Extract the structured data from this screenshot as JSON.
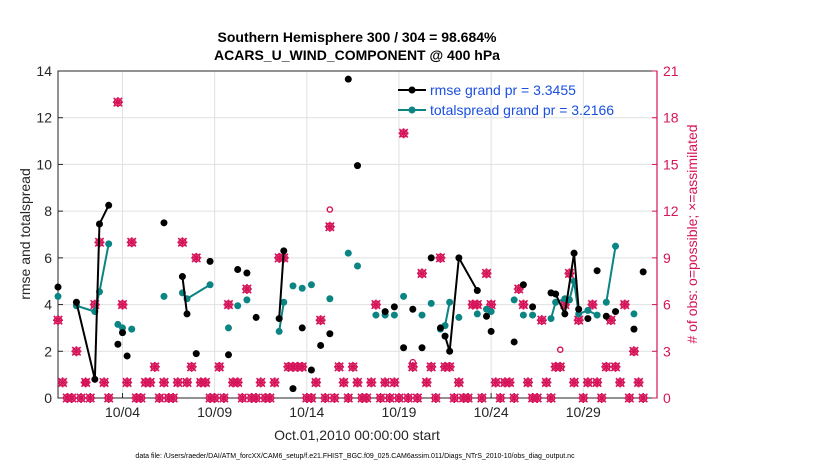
{
  "chart_data": {
    "type": "line",
    "title_line1": "Southern Hemisphere 300 / 304 = 98.684%",
    "title_line2": "ACARS_U_WIND_COMPONENT @ 400 hPa",
    "xlabel": "Oct.01,2010 00:00:00 start",
    "ylabel_left": "rmse and totalspread",
    "ylabel_right": "# of obs: o=possible; ×=assimilated",
    "footer": "data file: /Users/raeder/DAI/ATM_forcXX/CAM6_setup/f.e21.FHIST_BGC.f09_025.CAM6assim.011/Diags_NTrS_2010-10/obs_diag_output.nc",
    "xlim": [
      0.5,
      33
    ],
    "ylim_left": [
      0,
      14
    ],
    "ylim_right": [
      0,
      21
    ],
    "x_ticks": [
      {
        "x": 4,
        "label": "10/04"
      },
      {
        "x": 9,
        "label": "10/09"
      },
      {
        "x": 14,
        "label": "10/14"
      },
      {
        "x": 19,
        "label": "10/19"
      },
      {
        "x": 24,
        "label": "10/24"
      },
      {
        "x": 29,
        "label": "10/29"
      }
    ],
    "y_ticks_left": [
      "0",
      "2",
      "4",
      "6",
      "8",
      "10",
      "12",
      "14"
    ],
    "y_ticks_right": [
      "0",
      "3",
      "6",
      "9",
      "12",
      "15",
      "18",
      "21"
    ],
    "colors": {
      "rmse": "#000000",
      "spread": "#0b8484",
      "obs": "#d6145a",
      "legend_text": "#1a4fe0",
      "right_axis": "#d6145a"
    },
    "legend": {
      "rmse": "rmse grand pr = 3.3455",
      "spread": "totalspread grand pr = 3.2166",
      "position": "top-right"
    },
    "rmse": [
      [
        0.5,
        4.75
      ],
      [
        1.5,
        4.1
      ],
      [
        2.5,
        0.8
      ],
      [
        2.75,
        7.45
      ],
      [
        3.25,
        8.25
      ],
      [
        3.75,
        2.3
      ],
      [
        4.0,
        2.8
      ],
      [
        4.25,
        1.8
      ],
      [
        6.25,
        7.5
      ],
      [
        7.25,
        5.2
      ],
      [
        7.5,
        3.6
      ],
      [
        8.0,
        1.9
      ],
      [
        8.75,
        5.85
      ],
      [
        9.75,
        1.85
      ],
      [
        10.25,
        5.5
      ],
      [
        10.75,
        5.35
      ],
      [
        11.25,
        3.45
      ],
      [
        12.5,
        3.4
      ],
      [
        12.75,
        6.3
      ],
      [
        13.25,
        0.4
      ],
      [
        13.75,
        3.0
      ],
      [
        14.25,
        1.2
      ],
      [
        14.75,
        2.25
      ],
      [
        15.25,
        2.75
      ],
      [
        16.25,
        13.65
      ],
      [
        16.75,
        9.95
      ],
      [
        18.25,
        3.7
      ],
      [
        18.75,
        3.9
      ],
      [
        19.25,
        2.15
      ],
      [
        19.75,
        3.8
      ],
      [
        20.25,
        2.15
      ],
      [
        20.75,
        6.0
      ],
      [
        21.25,
        3.0
      ],
      [
        21.5,
        2.65
      ],
      [
        21.75,
        2.0
      ],
      [
        22.25,
        6.0
      ],
      [
        23.25,
        4.6
      ],
      [
        23.75,
        3.5
      ],
      [
        24.0,
        2.85
      ],
      [
        25.25,
        2.4
      ],
      [
        25.75,
        4.85
      ],
      [
        26.25,
        3.9
      ],
      [
        27.25,
        4.5
      ],
      [
        27.5,
        4.45
      ],
      [
        28.0,
        3.6
      ],
      [
        28.5,
        6.2
      ],
      [
        28.75,
        3.8
      ],
      [
        29.25,
        3.4
      ],
      [
        29.75,
        5.45
      ],
      [
        30.25,
        3.5
      ],
      [
        30.75,
        3.7
      ],
      [
        31.75,
        2.95
      ],
      [
        32.25,
        5.4
      ]
    ],
    "rmse_segments": [
      [
        1,
        4
      ],
      [
        9,
        10
      ],
      [
        17,
        18
      ],
      [
        33,
        36
      ],
      [
        42,
        46
      ]
    ],
    "spread": [
      [
        0.5,
        4.35
      ],
      [
        1.5,
        3.95
      ],
      [
        2.5,
        3.7
      ],
      [
        2.75,
        4.55
      ],
      [
        3.25,
        6.6
      ],
      [
        3.75,
        3.15
      ],
      [
        4.0,
        3.0
      ],
      [
        4.5,
        2.95
      ],
      [
        6.25,
        4.35
      ],
      [
        7.25,
        4.5
      ],
      [
        7.5,
        4.25
      ],
      [
        8.75,
        4.85
      ],
      [
        9.75,
        3.0
      ],
      [
        10.25,
        3.95
      ],
      [
        10.75,
        4.2
      ],
      [
        12.5,
        2.85
      ],
      [
        12.75,
        4.1
      ],
      [
        13.25,
        4.8
      ],
      [
        13.75,
        4.7
      ],
      [
        14.25,
        4.85
      ],
      [
        15.25,
        4.25
      ],
      [
        16.25,
        6.2
      ],
      [
        16.75,
        5.65
      ],
      [
        17.75,
        3.55
      ],
      [
        18.25,
        3.55
      ],
      [
        18.75,
        3.55
      ],
      [
        19.25,
        4.35
      ],
      [
        20.25,
        3.55
      ],
      [
        20.75,
        4.05
      ],
      [
        21.25,
        2.95
      ],
      [
        21.5,
        3.1
      ],
      [
        21.75,
        4.1
      ],
      [
        22.25,
        3.45
      ],
      [
        23.25,
        3.6
      ],
      [
        23.75,
        3.8
      ],
      [
        24.0,
        3.7
      ],
      [
        25.25,
        4.2
      ],
      [
        25.75,
        3.55
      ],
      [
        26.25,
        3.55
      ],
      [
        27.25,
        3.4
      ],
      [
        27.5,
        4.1
      ],
      [
        28.0,
        4.25
      ],
      [
        28.25,
        4.2
      ],
      [
        28.5,
        5.0
      ],
      [
        28.75,
        3.6
      ],
      [
        29.25,
        3.75
      ],
      [
        29.75,
        3.55
      ],
      [
        30.25,
        4.1
      ],
      [
        30.75,
        6.5
      ],
      [
        31.75,
        3.6
      ]
    ],
    "spread_segments": [
      [
        1,
        4
      ],
      [
        10,
        11
      ],
      [
        15,
        16
      ],
      [
        30,
        31
      ],
      [
        39,
        46
      ],
      [
        47,
        48
      ]
    ],
    "obs_assimilated": [
      [
        0.5,
        5
      ],
      [
        0.75,
        1
      ],
      [
        1.0,
        0
      ],
      [
        1.25,
        0
      ],
      [
        1.5,
        3
      ],
      [
        1.75,
        0
      ],
      [
        2.0,
        1
      ],
      [
        2.25,
        0
      ],
      [
        2.5,
        6
      ],
      [
        2.75,
        10
      ],
      [
        3.0,
        1
      ],
      [
        3.25,
        0
      ],
      [
        3.75,
        19
      ],
      [
        4.0,
        6
      ],
      [
        4.25,
        1
      ],
      [
        4.5,
        10
      ],
      [
        4.75,
        0
      ],
      [
        5.0,
        0
      ],
      [
        5.25,
        1
      ],
      [
        5.5,
        1
      ],
      [
        5.75,
        2
      ],
      [
        6.0,
        0
      ],
      [
        6.25,
        1
      ],
      [
        6.5,
        0
      ],
      [
        6.75,
        0
      ],
      [
        7.0,
        1
      ],
      [
        7.25,
        10
      ],
      [
        7.5,
        1
      ],
      [
        7.75,
        2
      ],
      [
        8.0,
        9
      ],
      [
        8.25,
        1
      ],
      [
        8.5,
        1
      ],
      [
        8.75,
        0
      ],
      [
        9.0,
        0
      ],
      [
        9.25,
        2
      ],
      [
        9.5,
        0
      ],
      [
        9.75,
        6
      ],
      [
        10.0,
        1
      ],
      [
        10.25,
        1
      ],
      [
        10.5,
        0
      ],
      [
        10.75,
        7
      ],
      [
        11.0,
        0
      ],
      [
        11.25,
        0
      ],
      [
        11.5,
        1
      ],
      [
        11.75,
        0
      ],
      [
        12.0,
        0
      ],
      [
        12.25,
        1
      ],
      [
        12.5,
        9
      ],
      [
        12.75,
        9
      ],
      [
        13.0,
        2
      ],
      [
        13.25,
        2
      ],
      [
        13.5,
        2
      ],
      [
        13.75,
        2
      ],
      [
        14.0,
        0
      ],
      [
        14.25,
        0
      ],
      [
        14.5,
        1
      ],
      [
        14.75,
        5
      ],
      [
        15.0,
        0
      ],
      [
        15.25,
        11
      ],
      [
        15.5,
        0
      ],
      [
        15.75,
        2
      ],
      [
        16.0,
        1
      ],
      [
        16.25,
        0
      ],
      [
        16.5,
        2
      ],
      [
        16.75,
        1
      ],
      [
        17.0,
        0
      ],
      [
        17.25,
        0
      ],
      [
        17.5,
        1
      ],
      [
        17.75,
        6
      ],
      [
        18.0,
        0
      ],
      [
        18.25,
        1
      ],
      [
        18.5,
        0
      ],
      [
        18.75,
        1
      ],
      [
        19.0,
        0
      ],
      [
        19.25,
        17
      ],
      [
        19.5,
        0
      ],
      [
        19.75,
        2
      ],
      [
        20.0,
        0
      ],
      [
        20.25,
        8
      ],
      [
        20.5,
        1
      ],
      [
        20.75,
        2
      ],
      [
        21.0,
        0
      ],
      [
        21.25,
        9
      ],
      [
        21.5,
        2
      ],
      [
        21.75,
        2
      ],
      [
        22.0,
        0
      ],
      [
        22.25,
        1
      ],
      [
        22.5,
        0
      ],
      [
        22.75,
        0
      ],
      [
        23.0,
        6
      ],
      [
        23.25,
        6
      ],
      [
        23.5,
        0
      ],
      [
        23.75,
        8
      ],
      [
        24.0,
        6
      ],
      [
        24.25,
        1
      ],
      [
        24.5,
        0
      ],
      [
        24.75,
        1
      ],
      [
        25.0,
        1
      ],
      [
        25.25,
        0
      ],
      [
        25.5,
        7
      ],
      [
        25.75,
        6
      ],
      [
        26.0,
        1
      ],
      [
        26.25,
        0
      ],
      [
        26.5,
        0
      ],
      [
        26.75,
        5
      ],
      [
        27.0,
        1
      ],
      [
        27.25,
        0
      ],
      [
        27.5,
        2
      ],
      [
        27.75,
        2
      ],
      [
        28.0,
        6
      ],
      [
        28.25,
        8
      ],
      [
        28.5,
        1
      ],
      [
        28.75,
        5
      ],
      [
        29.0,
        0
      ],
      [
        29.25,
        1
      ],
      [
        29.5,
        6
      ],
      [
        29.75,
        1
      ],
      [
        30.0,
        0
      ],
      [
        30.25,
        2
      ],
      [
        30.5,
        5
      ],
      [
        30.75,
        2
      ],
      [
        31.0,
        1
      ],
      [
        31.25,
        6
      ],
      [
        31.5,
        0
      ],
      [
        31.75,
        3
      ],
      [
        32.0,
        1
      ],
      [
        32.25,
        0
      ]
    ],
    "obs_possible_only": [
      [
        2.0,
        1
      ],
      [
        15.25,
        12.1
      ],
      [
        19.75,
        2.3
      ],
      [
        27.75,
        3.1
      ]
    ]
  }
}
